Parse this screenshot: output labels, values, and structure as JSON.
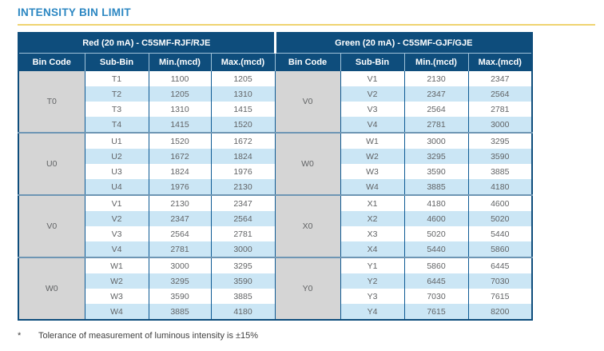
{
  "page": {
    "title": "INTENSITY BIN LIMIT",
    "footnote_marker": "*",
    "footnote_text": "Tolerance of measurement of luminous intensity is ±15%"
  },
  "colors": {
    "title_blue": "#2c87c2",
    "header_navy": "#0e4d7c",
    "accent_gold": "#efd472",
    "row_stripe_blue": "#cbe6f5",
    "bin_code_gray": "#d5d5d5",
    "cell_border_blue": "#0e5a94",
    "group_separator_blue": "#6e96b4"
  },
  "table": {
    "halves": [
      {
        "title": "Red (20 mA) - C5SMF-RJF/RJE",
        "columns": [
          "Bin Code",
          "Sub-Bin",
          "Min.(mcd)",
          "Max.(mcd)"
        ],
        "groups": [
          {
            "bin": "T0",
            "rows": [
              [
                "T1",
                "1100",
                "1205"
              ],
              [
                "T2",
                "1205",
                "1310"
              ],
              [
                "T3",
                "1310",
                "1415"
              ],
              [
                "T4",
                "1415",
                "1520"
              ]
            ]
          },
          {
            "bin": "U0",
            "rows": [
              [
                "U1",
                "1520",
                "1672"
              ],
              [
                "U2",
                "1672",
                "1824"
              ],
              [
                "U3",
                "1824",
                "1976"
              ],
              [
                "U4",
                "1976",
                "2130"
              ]
            ]
          },
          {
            "bin": "V0",
            "rows": [
              [
                "V1",
                "2130",
                "2347"
              ],
              [
                "V2",
                "2347",
                "2564"
              ],
              [
                "V3",
                "2564",
                "2781"
              ],
              [
                "V4",
                "2781",
                "3000"
              ]
            ]
          },
          {
            "bin": "W0",
            "rows": [
              [
                "W1",
                "3000",
                "3295"
              ],
              [
                "W2",
                "3295",
                "3590"
              ],
              [
                "W3",
                "3590",
                "3885"
              ],
              [
                "W4",
                "3885",
                "4180"
              ]
            ]
          }
        ]
      },
      {
        "title": "Green (20 mA) - C5SMF-GJF/GJE",
        "columns": [
          "Bin Code",
          "Sub-Bin",
          "Min.(mcd)",
          "Max.(mcd)"
        ],
        "groups": [
          {
            "bin": "V0",
            "rows": [
              [
                "V1",
                "2130",
                "2347"
              ],
              [
                "V2",
                "2347",
                "2564"
              ],
              [
                "V3",
                "2564",
                "2781"
              ],
              [
                "V4",
                "2781",
                "3000"
              ]
            ]
          },
          {
            "bin": "W0",
            "rows": [
              [
                "W1",
                "3000",
                "3295"
              ],
              [
                "W2",
                "3295",
                "3590"
              ],
              [
                "W3",
                "3590",
                "3885"
              ],
              [
                "W4",
                "3885",
                "4180"
              ]
            ]
          },
          {
            "bin": "X0",
            "rows": [
              [
                "X1",
                "4180",
                "4600"
              ],
              [
                "X2",
                "4600",
                "5020"
              ],
              [
                "X3",
                "5020",
                "5440"
              ],
              [
                "X4",
                "5440",
                "5860"
              ]
            ]
          },
          {
            "bin": "Y0",
            "rows": [
              [
                "Y1",
                "5860",
                "6445"
              ],
              [
                "Y2",
                "6445",
                "7030"
              ],
              [
                "Y3",
                "7030",
                "7615"
              ],
              [
                "Y4",
                "7615",
                "8200"
              ]
            ]
          }
        ]
      }
    ]
  }
}
